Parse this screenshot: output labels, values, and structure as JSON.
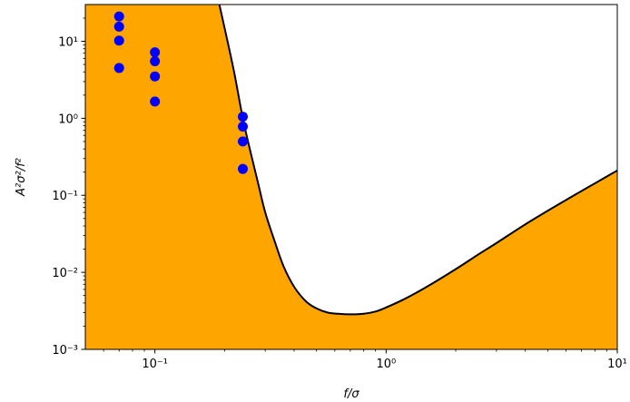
{
  "chart_data": {
    "type": "scatter",
    "title": "",
    "xlabel": "f/σ",
    "ylabel": "A²σ²/f²",
    "x_scale": "log",
    "y_scale": "log",
    "xlim": [
      0.05,
      10
    ],
    "ylim": [
      0.001,
      30
    ],
    "x_ticks": [
      {
        "value": 0.1,
        "label": "10⁻¹"
      },
      {
        "value": 1,
        "label": "10⁰"
      },
      {
        "value": 10,
        "label": "10¹"
      }
    ],
    "y_ticks": [
      {
        "value": 0.001,
        "label": "10⁻³"
      },
      {
        "value": 0.01,
        "label": "10⁻²"
      },
      {
        "value": 0.1,
        "label": "10⁻¹"
      },
      {
        "value": 1,
        "label": "10⁰"
      },
      {
        "value": 10,
        "label": "10¹"
      }
    ],
    "grid": false,
    "fill_color": "#ffa500",
    "curve_color": "#000000",
    "point_color": "#0000ff",
    "boundary_curve": {
      "x": [
        0.19,
        0.2,
        0.22,
        0.24,
        0.26,
        0.28,
        0.3,
        0.33,
        0.36,
        0.4,
        0.45,
        0.5,
        0.56,
        0.62,
        0.7,
        0.8,
        0.9,
        1.0,
        1.2,
        1.5,
        2.0,
        2.5,
        3.0,
        4.0,
        5.0,
        6.5,
        8.0,
        10.0
      ],
      "y": [
        30,
        15,
        4.0,
        1.0,
        0.35,
        0.14,
        0.06,
        0.025,
        0.012,
        0.0065,
        0.0042,
        0.0034,
        0.003,
        0.0029,
        0.00285,
        0.0029,
        0.0031,
        0.0035,
        0.0045,
        0.0065,
        0.011,
        0.017,
        0.024,
        0.042,
        0.063,
        0.1,
        0.143,
        0.21
      ]
    },
    "series": [
      {
        "x": [
          0.07,
          0.07,
          0.07,
          0.07,
          0.1,
          0.1,
          0.1,
          0.1,
          0.24,
          0.24,
          0.24,
          0.24
        ],
        "y": [
          21,
          15.5,
          10.2,
          4.5,
          7.2,
          5.5,
          3.5,
          1.65,
          1.05,
          0.78,
          0.5,
          0.22
        ]
      }
    ]
  }
}
